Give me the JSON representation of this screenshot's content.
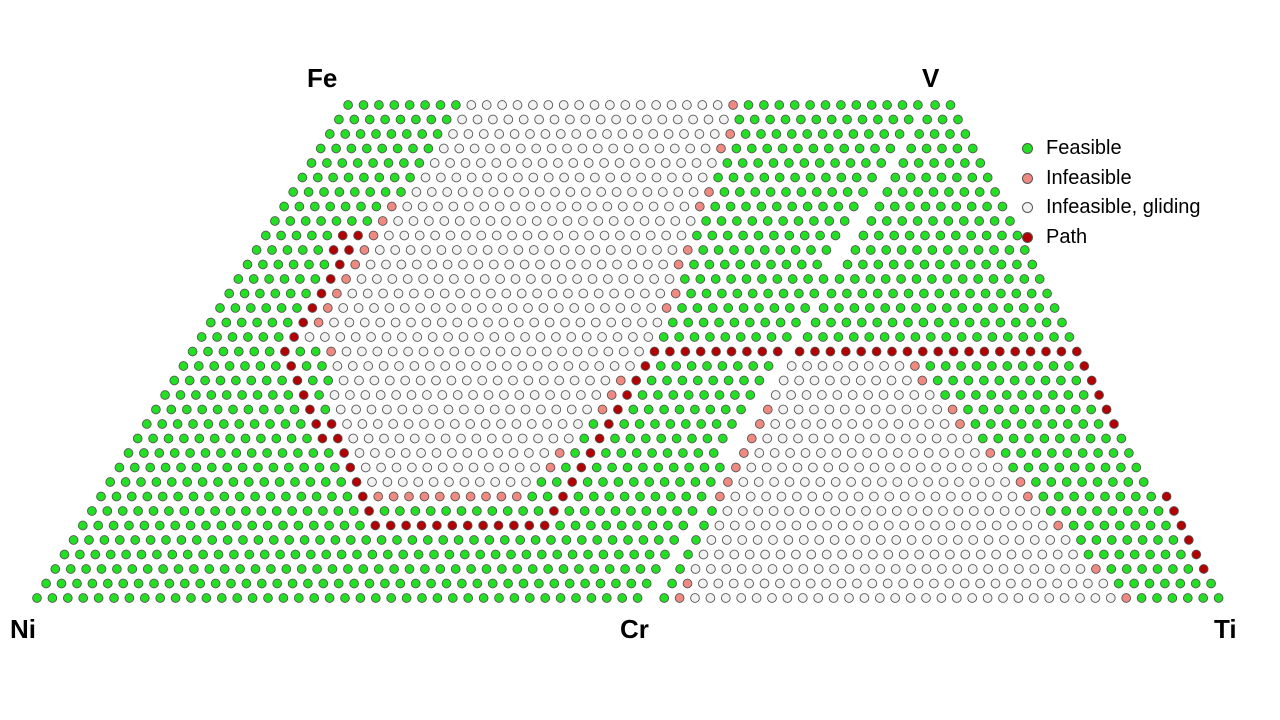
{
  "diagram": {
    "type": "quaternary composition feasibility map (two ternary triangles split)",
    "corners": {
      "ni": "Ni",
      "cr": "Cr",
      "ti": "Ti",
      "fe": "Fe",
      "v": "V"
    },
    "colors": {
      "feasible": "#22e022",
      "infeasible": "#f08a80",
      "gliding": "#f2f2f2",
      "path": "#b30000",
      "outline": "#555555"
    },
    "legend": [
      {
        "key": "feasible",
        "label": "Feasible"
      },
      {
        "key": "infeasible",
        "label": "Infeasible"
      },
      {
        "key": "gliding",
        "label": "Infeasible, gliding"
      },
      {
        "key": "path",
        "label": "Path"
      }
    ]
  }
}
